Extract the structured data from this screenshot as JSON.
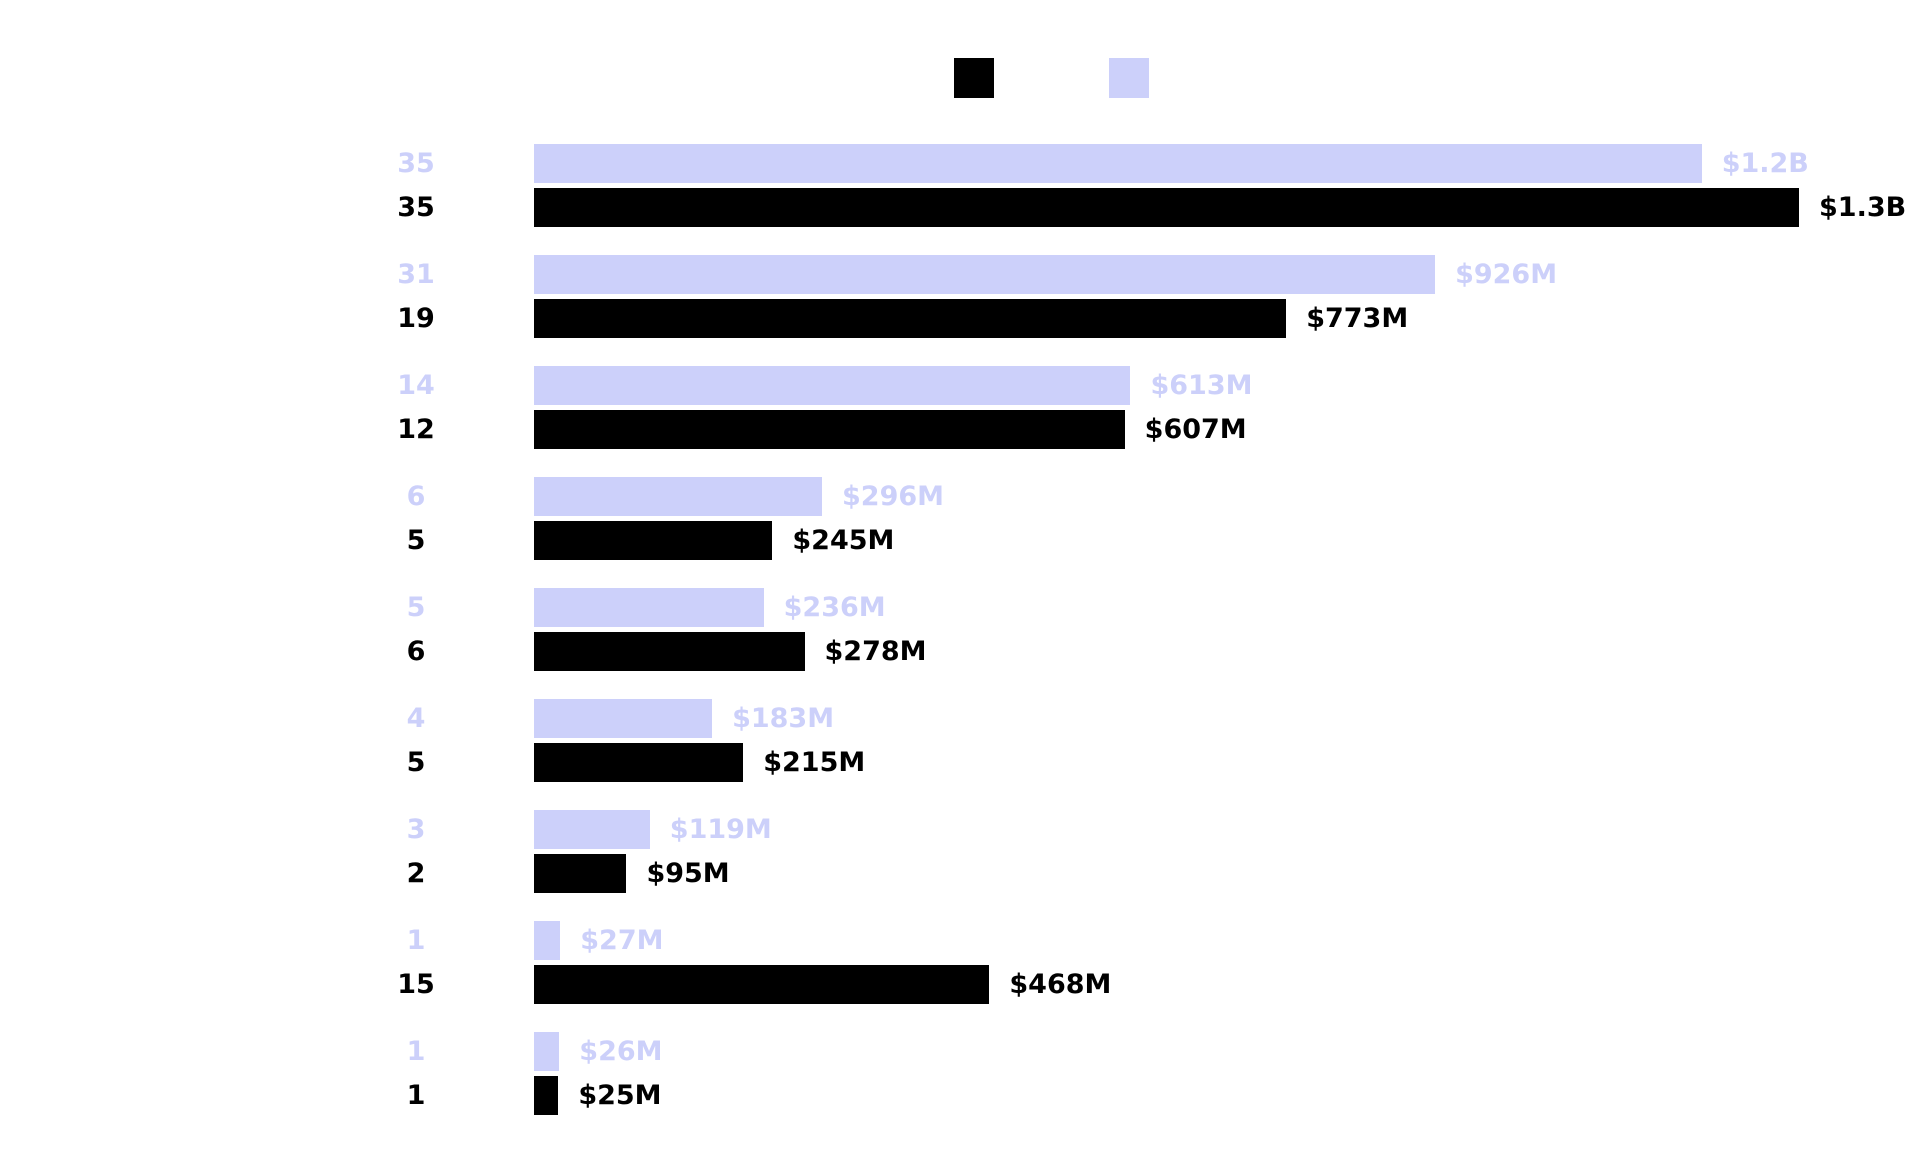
{
  "chart_data": {
    "type": "bar",
    "orientation": "horizontal",
    "legend_placement": "top-center",
    "grid": false,
    "unit": "$M",
    "xlim": [
      0,
      1300
    ],
    "colors": {
      "series_a": "#000000",
      "series_b": "#ccd0fa"
    },
    "series": [
      {
        "color": "#ccd0fa",
        "counts": [
          "35",
          "31",
          "14",
          "6",
          "5",
          "4",
          "3",
          "1",
          "1"
        ],
        "values": [
          1200,
          926,
          613,
          296,
          236,
          183,
          119,
          27,
          26
        ],
        "value_labels": [
          "$1.2B",
          "$926M",
          "$613M",
          "$296M",
          "$236M",
          "$183M",
          "$119M",
          "$27M",
          "$26M"
        ]
      },
      {
        "color": "#000000",
        "counts": [
          "35",
          "19",
          "12",
          "5",
          "6",
          "5",
          "2",
          "15",
          "1"
        ],
        "values": [
          1300,
          773,
          607,
          245,
          278,
          215,
          95,
          468,
          25
        ],
        "value_labels": [
          "$1.3B",
          "$773M",
          "$607M",
          "$245M",
          "$278M",
          "$215M",
          "$95M",
          "$468M",
          "$25M"
        ]
      }
    ]
  }
}
